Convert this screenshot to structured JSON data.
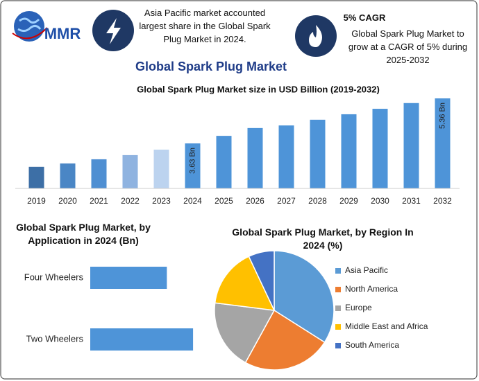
{
  "header": {
    "logo": "MMR",
    "title": "Global Spark Plug Market",
    "highlight_1": "Asia Pacific market accounted largest share in the Global Spark Plug Market in 2024.",
    "highlight_2_title": "5% CAGR",
    "highlight_2": "Global Spark Plug Market to grow at a CAGR of 5% during 2025-2032"
  },
  "chart_data": [
    {
      "type": "bar",
      "title": "Global Spark Plug Market size in USD Billion (2019-2032)",
      "categories": [
        "2019",
        "2020",
        "2021",
        "2022",
        "2023",
        "2024",
        "2025",
        "2026",
        "2027",
        "2028",
        "2029",
        "2030",
        "2031",
        "2032"
      ],
      "values": [
        2.73,
        2.86,
        3.02,
        3.18,
        3.39,
        3.63,
        3.92,
        4.22,
        4.32,
        4.54,
        4.75,
        4.96,
        5.18,
        5.36
      ],
      "value_labels": [
        null,
        null,
        null,
        null,
        null,
        "3.63 Bn",
        null,
        null,
        null,
        null,
        null,
        null,
        null,
        "5.36 Bn"
      ],
      "colors": [
        "#3d6fa6",
        "#4a86c5",
        "#4f8fd2",
        "#8fb3e0",
        "#bcd3ef",
        "#4e94d8",
        "#4e94d8",
        "#4e94d8",
        "#4e94d8",
        "#4e94d8",
        "#4e94d8",
        "#4e94d8",
        "#4e94d8",
        "#4e94d8"
      ],
      "ylim": [
        1.9,
        5.6
      ]
    },
    {
      "type": "bar",
      "orientation": "horizontal",
      "title": "Global Spark Plug Market, by Application in 2024 (Bn)",
      "categories": [
        "Four Wheelers",
        "Two Wheelers"
      ],
      "values": [
        1.55,
        2.08
      ],
      "color": "#4e94d8",
      "xlim": [
        0,
        2.5
      ]
    },
    {
      "type": "pie",
      "title": "Global Spark Plug Market, by Region In 2024 (%)",
      "categories": [
        "Asia Pacific",
        "North America",
        "Europe",
        "Middle East and Africa",
        "South America"
      ],
      "values": [
        34,
        24,
        19,
        16,
        7
      ],
      "colors": [
        "#5b9bd5",
        "#ed7d31",
        "#a5a5a5",
        "#ffc000",
        "#4472c4"
      ],
      "legend": "right"
    }
  ]
}
